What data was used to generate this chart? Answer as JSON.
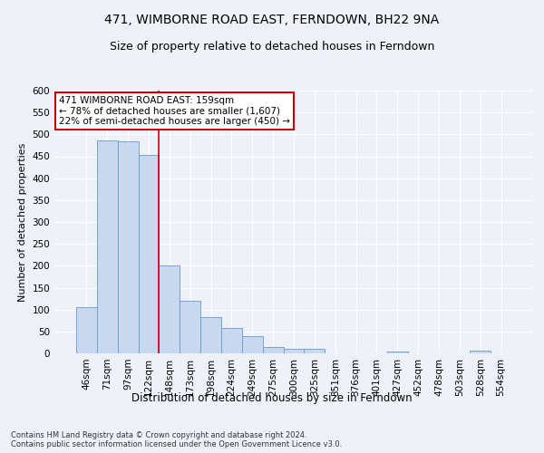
{
  "title": "471, WIMBORNE ROAD EAST, FERNDOWN, BH22 9NA",
  "subtitle": "Size of property relative to detached houses in Ferndown",
  "xlabel_bottom": "Distribution of detached houses by size in Ferndown",
  "ylabel": "Number of detached properties",
  "categories": [
    "46sqm",
    "71sqm",
    "97sqm",
    "122sqm",
    "148sqm",
    "173sqm",
    "198sqm",
    "224sqm",
    "249sqm",
    "275sqm",
    "300sqm",
    "325sqm",
    "351sqm",
    "376sqm",
    "401sqm",
    "427sqm",
    "452sqm",
    "478sqm",
    "503sqm",
    "528sqm",
    "554sqm"
  ],
  "values": [
    105,
    487,
    485,
    453,
    200,
    120,
    82,
    57,
    40,
    15,
    10,
    10,
    0,
    0,
    0,
    5,
    0,
    0,
    0,
    7,
    0
  ],
  "bar_color": "#c8d8ee",
  "bar_edge_color": "#6699cc",
  "annotation_text": "471 WIMBORNE ROAD EAST: 159sqm\n← 78% of detached houses are smaller (1,607)\n22% of semi-detached houses are larger (450) →",
  "annotation_box_color": "#ffffff",
  "annotation_box_edge": "#cc0000",
  "vline_color": "#cc0000",
  "vline_x_index": 3.5,
  "footer": "Contains HM Land Registry data © Crown copyright and database right 2024.\nContains public sector information licensed under the Open Government Licence v3.0.",
  "ylim": [
    0,
    600
  ],
  "yticks": [
    0,
    50,
    100,
    150,
    200,
    250,
    300,
    350,
    400,
    450,
    500,
    550,
    600
  ],
  "background_color": "#eef2f8",
  "grid_color": "#ffffff",
  "title_fontsize": 10,
  "subtitle_fontsize": 9,
  "ylabel_fontsize": 8,
  "xlabel_fontsize": 8.5,
  "tick_fontsize": 7.5,
  "footer_fontsize": 6
}
